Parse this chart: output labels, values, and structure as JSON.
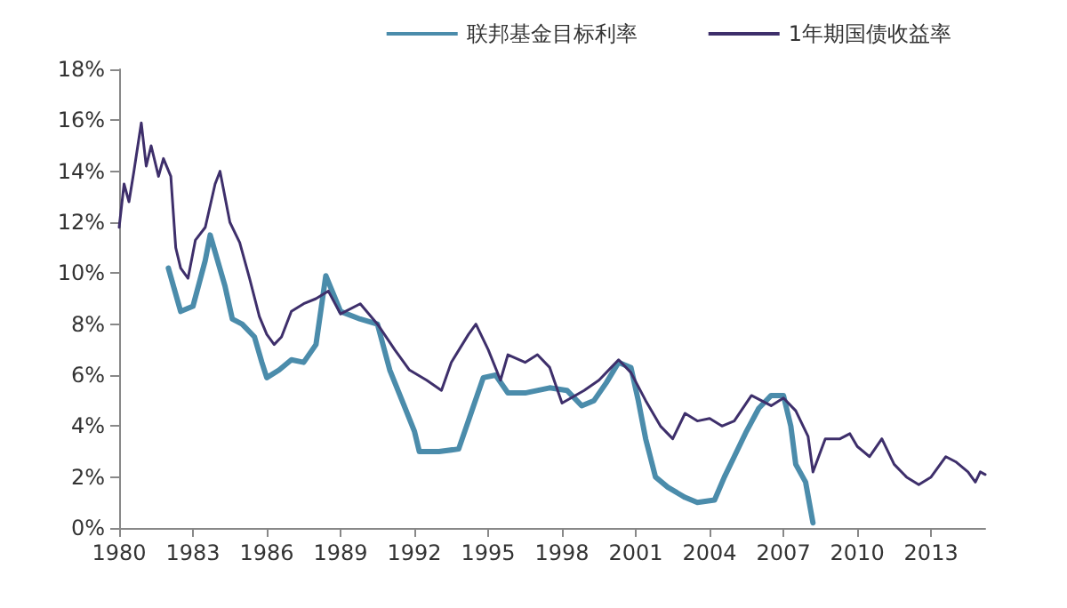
{
  "chart_data": {
    "type": "line",
    "xlim": [
      1980,
      2015.2
    ],
    "xticks": [
      1980,
      1983,
      1986,
      1989,
      1992,
      1995,
      1998,
      2001,
      2004,
      2007,
      2010,
      2013
    ],
    "ylim": [
      0,
      18
    ],
    "yticks": [
      {
        "value": 0,
        "label": "0%"
      },
      {
        "value": 2,
        "label": "2%"
      },
      {
        "value": 4,
        "label": "4%"
      },
      {
        "value": 6,
        "label": "6%"
      },
      {
        "value": 8,
        "label": "8%"
      },
      {
        "value": 10,
        "label": "10%"
      },
      {
        "value": 12,
        "label": "12%"
      },
      {
        "value": 14,
        "label": "14%"
      },
      {
        "value": 16,
        "label": "16%"
      },
      {
        "value": 18,
        "label": "18%"
      }
    ],
    "grid": false,
    "legend": "top right",
    "marker": "none",
    "line_style": "solid",
    "series": [
      {
        "name": "联邦基金目标利率",
        "color": "#4b8cab",
        "x": [
          1982.0,
          1982.5,
          1983.0,
          1983.5,
          1983.7,
          1984.3,
          1984.6,
          1985.0,
          1985.5,
          1985.8,
          1986.0,
          1986.5,
          1987.0,
          1987.5,
          1988.0,
          1988.4,
          1989.0,
          1989.8,
          1990.5,
          1991.0,
          1991.5,
          1992.0,
          1992.2,
          1993.0,
          1993.8,
          1994.3,
          1994.8,
          1995.3,
          1995.8,
          1996.5,
          1997.5,
          1998.2,
          1998.8,
          1999.3,
          1999.8,
          2000.3,
          2000.8,
          2001.1,
          2001.4,
          2001.8,
          2002.3,
          2003.0,
          2003.5,
          2004.2,
          2004.6,
          2005.0,
          2005.5,
          2006.0,
          2006.5,
          2007.0,
          2007.3,
          2007.5,
          2007.9,
          2008.2
        ],
        "values": [
          10.2,
          8.5,
          8.7,
          10.5,
          11.5,
          9.5,
          8.2,
          8.0,
          7.5,
          6.5,
          5.9,
          6.2,
          6.6,
          6.5,
          7.2,
          9.9,
          8.5,
          8.2,
          8.0,
          6.2,
          5.0,
          3.8,
          3.0,
          3.0,
          3.1,
          4.5,
          5.9,
          6.0,
          5.3,
          5.3,
          5.5,
          5.4,
          4.8,
          5.0,
          5.7,
          6.5,
          6.3,
          5.0,
          3.5,
          2.0,
          1.6,
          1.2,
          1.0,
          1.1,
          2.0,
          2.8,
          3.8,
          4.7,
          5.2,
          5.2,
          4.0,
          2.5,
          1.8,
          0.2
        ]
      },
      {
        "name": "1年期国债收益率",
        "color": "#3e2f6b",
        "x": [
          1980.0,
          1980.2,
          1980.4,
          1980.6,
          1980.9,
          1981.1,
          1981.3,
          1981.6,
          1981.8,
          1982.1,
          1982.3,
          1982.5,
          1982.8,
          1983.1,
          1983.5,
          1983.9,
          1984.1,
          1984.5,
          1984.9,
          1985.3,
          1985.7,
          1986.0,
          1986.3,
          1986.6,
          1987.0,
          1987.5,
          1988.0,
          1988.5,
          1989.0,
          1989.8,
          1990.5,
          1991.2,
          1991.8,
          1992.5,
          1993.1,
          1993.5,
          1994.2,
          1994.5,
          1995.0,
          1995.5,
          1995.8,
          1996.5,
          1997.0,
          1997.5,
          1998.0,
          1998.9,
          1999.5,
          2000.0,
          2000.3,
          2000.8,
          2001.4,
          2002.0,
          2002.5,
          2003.0,
          2003.5,
          2004.0,
          2004.5,
          2005.0,
          2005.7,
          2006.5,
          2007.0,
          2007.5,
          2008.0,
          2008.2,
          2008.7,
          2009.3,
          2009.7,
          2010.0,
          2010.5,
          2011.0,
          2011.5,
          2012.0,
          2012.5,
          2013.0,
          2013.6,
          2014.0,
          2014.5,
          2014.8,
          2015.0,
          2015.2
        ],
        "values": [
          11.8,
          13.5,
          12.8,
          14.0,
          15.9,
          14.2,
          15.0,
          13.8,
          14.5,
          13.8,
          11.0,
          10.2,
          9.8,
          11.3,
          11.8,
          13.5,
          14.0,
          12.0,
          11.2,
          9.8,
          8.3,
          7.6,
          7.2,
          7.5,
          8.5,
          8.8,
          9.0,
          9.3,
          8.4,
          8.8,
          8.0,
          7.0,
          6.2,
          5.8,
          5.4,
          6.5,
          7.6,
          8.0,
          7.0,
          5.8,
          6.8,
          6.5,
          6.8,
          6.3,
          4.9,
          5.4,
          5.8,
          6.3,
          6.6,
          6.1,
          5.0,
          4.0,
          3.5,
          4.5,
          4.2,
          4.3,
          4.0,
          4.2,
          5.2,
          4.8,
          5.1,
          4.6,
          3.6,
          2.2,
          3.5,
          3.5,
          3.7,
          3.2,
          2.8,
          3.5,
          2.5,
          2.0,
          1.7,
          2.0,
          2.8,
          2.6,
          2.2,
          1.8,
          2.2,
          2.1
        ]
      }
    ]
  }
}
